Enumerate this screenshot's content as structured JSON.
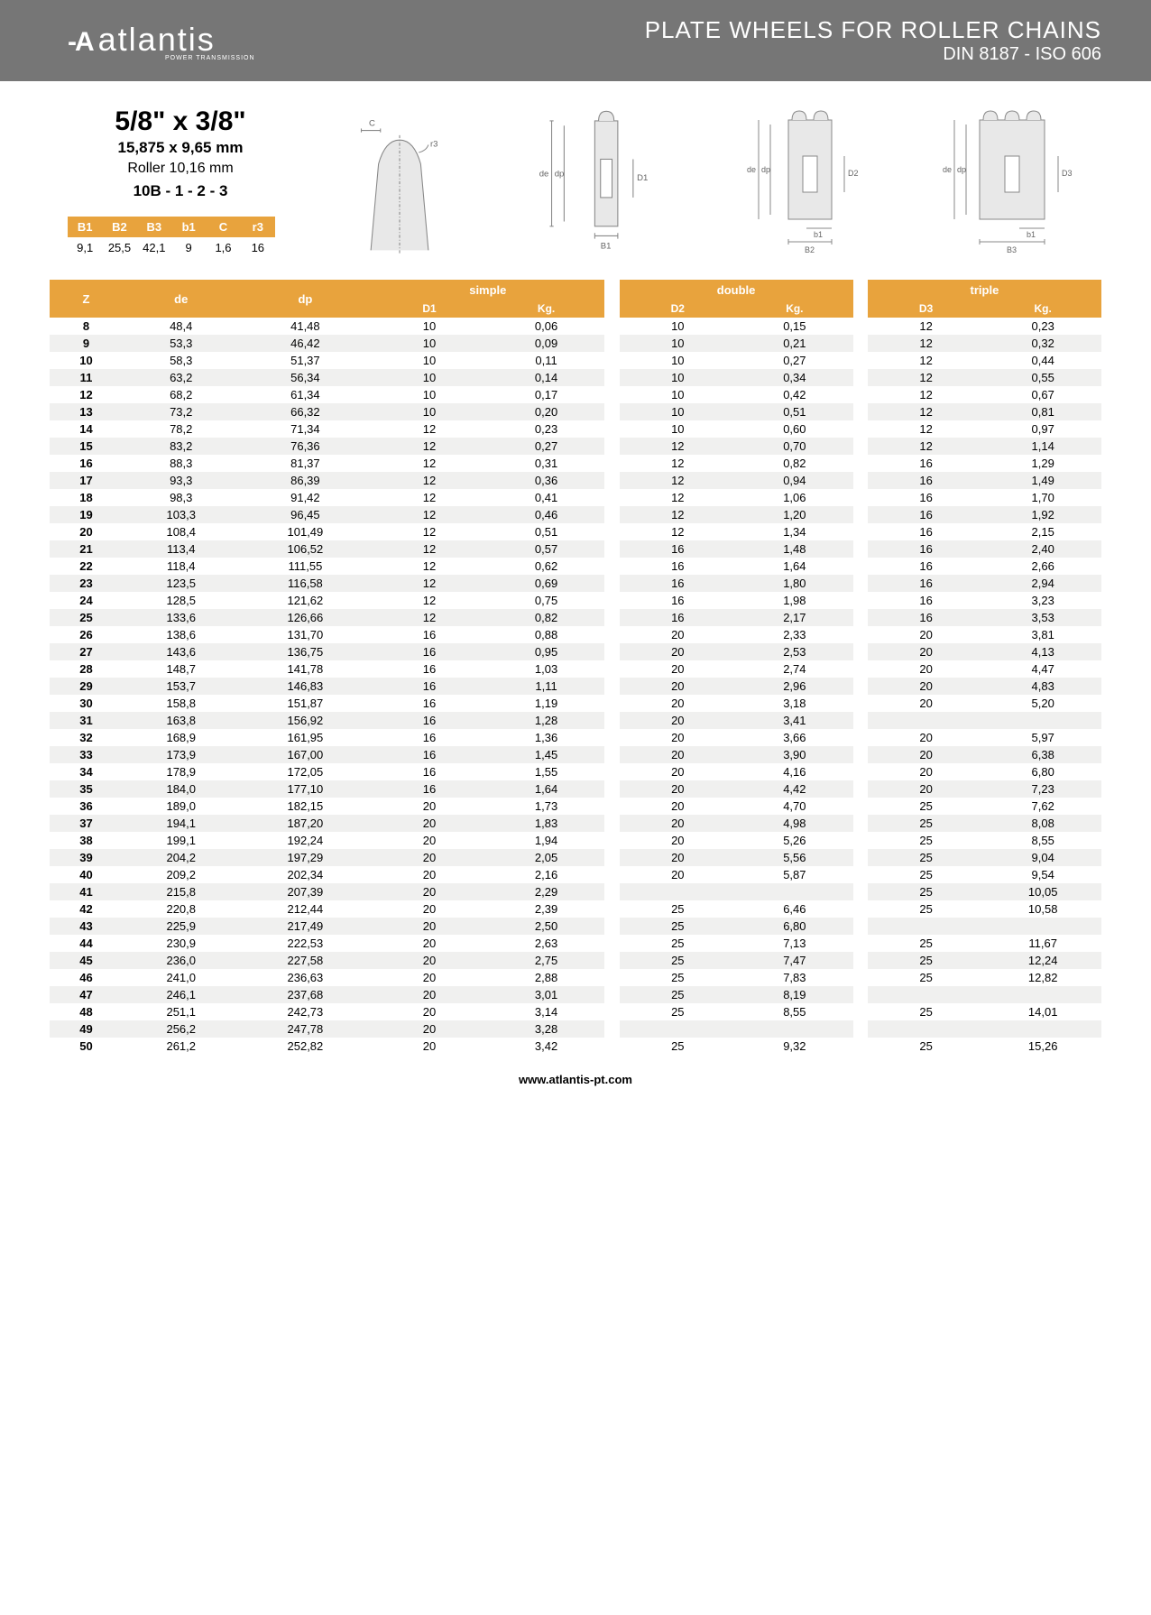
{
  "header": {
    "logo_text": "atlantis",
    "logo_sub": "POWER TRANSMISSION",
    "title": "PLATE WHEELS FOR ROLLER CHAINS",
    "subtitle": "DIN 8187 - ISO 606"
  },
  "spec": {
    "main": "5/8\" x 3/8\"",
    "sub1": "15,875 x 9,65 mm",
    "sub2": "Roller 10,16 mm",
    "sub3": "10B - 1 - 2 - 3"
  },
  "mini_table": {
    "headers": [
      "B1",
      "B2",
      "B3",
      "b1",
      "C",
      "r3"
    ],
    "values": [
      "9,1",
      "25,5",
      "42,1",
      "9",
      "1,6",
      "16"
    ]
  },
  "table": {
    "group_headers": [
      "simple",
      "double",
      "triple"
    ],
    "sub_headers": {
      "z": "Z",
      "de": "de",
      "dp": "dp",
      "d1": "D1",
      "kg1": "Kg.",
      "d2": "D2",
      "kg2": "Kg.",
      "d3": "D3",
      "kg3": "Kg."
    },
    "rows": [
      [
        "8",
        "48,4",
        "41,48",
        "10",
        "0,06",
        "10",
        "0,15",
        "12",
        "0,23"
      ],
      [
        "9",
        "53,3",
        "46,42",
        "10",
        "0,09",
        "10",
        "0,21",
        "12",
        "0,32"
      ],
      [
        "10",
        "58,3",
        "51,37",
        "10",
        "0,11",
        "10",
        "0,27",
        "12",
        "0,44"
      ],
      [
        "11",
        "63,2",
        "56,34",
        "10",
        "0,14",
        "10",
        "0,34",
        "12",
        "0,55"
      ],
      [
        "12",
        "68,2",
        "61,34",
        "10",
        "0,17",
        "10",
        "0,42",
        "12",
        "0,67"
      ],
      [
        "13",
        "73,2",
        "66,32",
        "10",
        "0,20",
        "10",
        "0,51",
        "12",
        "0,81"
      ],
      [
        "14",
        "78,2",
        "71,34",
        "12",
        "0,23",
        "10",
        "0,60",
        "12",
        "0,97"
      ],
      [
        "15",
        "83,2",
        "76,36",
        "12",
        "0,27",
        "12",
        "0,70",
        "12",
        "1,14"
      ],
      [
        "16",
        "88,3",
        "81,37",
        "12",
        "0,31",
        "12",
        "0,82",
        "16",
        "1,29"
      ],
      [
        "17",
        "93,3",
        "86,39",
        "12",
        "0,36",
        "12",
        "0,94",
        "16",
        "1,49"
      ],
      [
        "18",
        "98,3",
        "91,42",
        "12",
        "0,41",
        "12",
        "1,06",
        "16",
        "1,70"
      ],
      [
        "19",
        "103,3",
        "96,45",
        "12",
        "0,46",
        "12",
        "1,20",
        "16",
        "1,92"
      ],
      [
        "20",
        "108,4",
        "101,49",
        "12",
        "0,51",
        "12",
        "1,34",
        "16",
        "2,15"
      ],
      [
        "21",
        "113,4",
        "106,52",
        "12",
        "0,57",
        "16",
        "1,48",
        "16",
        "2,40"
      ],
      [
        "22",
        "118,4",
        "111,55",
        "12",
        "0,62",
        "16",
        "1,64",
        "16",
        "2,66"
      ],
      [
        "23",
        "123,5",
        "116,58",
        "12",
        "0,69",
        "16",
        "1,80",
        "16",
        "2,94"
      ],
      [
        "24",
        "128,5",
        "121,62",
        "12",
        "0,75",
        "16",
        "1,98",
        "16",
        "3,23"
      ],
      [
        "25",
        "133,6",
        "126,66",
        "12",
        "0,82",
        "16",
        "2,17",
        "16",
        "3,53"
      ],
      [
        "26",
        "138,6",
        "131,70",
        "16",
        "0,88",
        "20",
        "2,33",
        "20",
        "3,81"
      ],
      [
        "27",
        "143,6",
        "136,75",
        "16",
        "0,95",
        "20",
        "2,53",
        "20",
        "4,13"
      ],
      [
        "28",
        "148,7",
        "141,78",
        "16",
        "1,03",
        "20",
        "2,74",
        "20",
        "4,47"
      ],
      [
        "29",
        "153,7",
        "146,83",
        "16",
        "1,11",
        "20",
        "2,96",
        "20",
        "4,83"
      ],
      [
        "30",
        "158,8",
        "151,87",
        "16",
        "1,19",
        "20",
        "3,18",
        "20",
        "5,20"
      ],
      [
        "31",
        "163,8",
        "156,92",
        "16",
        "1,28",
        "20",
        "3,41",
        "",
        ""
      ],
      [
        "32",
        "168,9",
        "161,95",
        "16",
        "1,36",
        "20",
        "3,66",
        "20",
        "5,97"
      ],
      [
        "33",
        "173,9",
        "167,00",
        "16",
        "1,45",
        "20",
        "3,90",
        "20",
        "6,38"
      ],
      [
        "34",
        "178,9",
        "172,05",
        "16",
        "1,55",
        "20",
        "4,16",
        "20",
        "6,80"
      ],
      [
        "35",
        "184,0",
        "177,10",
        "16",
        "1,64",
        "20",
        "4,42",
        "20",
        "7,23"
      ],
      [
        "36",
        "189,0",
        "182,15",
        "20",
        "1,73",
        "20",
        "4,70",
        "25",
        "7,62"
      ],
      [
        "37",
        "194,1",
        "187,20",
        "20",
        "1,83",
        "20",
        "4,98",
        "25",
        "8,08"
      ],
      [
        "38",
        "199,1",
        "192,24",
        "20",
        "1,94",
        "20",
        "5,26",
        "25",
        "8,55"
      ],
      [
        "39",
        "204,2",
        "197,29",
        "20",
        "2,05",
        "20",
        "5,56",
        "25",
        "9,04"
      ],
      [
        "40",
        "209,2",
        "202,34",
        "20",
        "2,16",
        "20",
        "5,87",
        "25",
        "9,54"
      ],
      [
        "41",
        "215,8",
        "207,39",
        "20",
        "2,29",
        "",
        "",
        "25",
        "10,05"
      ],
      [
        "42",
        "220,8",
        "212,44",
        "20",
        "2,39",
        "25",
        "6,46",
        "25",
        "10,58"
      ],
      [
        "43",
        "225,9",
        "217,49",
        "20",
        "2,50",
        "25",
        "6,80",
        "",
        ""
      ],
      [
        "44",
        "230,9",
        "222,53",
        "20",
        "2,63",
        "25",
        "7,13",
        "25",
        "11,67"
      ],
      [
        "45",
        "236,0",
        "227,58",
        "20",
        "2,75",
        "25",
        "7,47",
        "25",
        "12,24"
      ],
      [
        "46",
        "241,0",
        "236,63",
        "20",
        "2,88",
        "25",
        "7,83",
        "25",
        "12,82"
      ],
      [
        "47",
        "246,1",
        "237,68",
        "20",
        "3,01",
        "25",
        "8,19",
        "",
        ""
      ],
      [
        "48",
        "251,1",
        "242,73",
        "20",
        "3,14",
        "25",
        "8,55",
        "25",
        "14,01"
      ],
      [
        "49",
        "256,2",
        "247,78",
        "20",
        "3,28",
        "",
        "",
        "",
        ""
      ],
      [
        "50",
        "261,2",
        "252,82",
        "20",
        "3,42",
        "25",
        "9,32",
        "25",
        "15,26"
      ]
    ]
  },
  "footer": "www.atlantis-pt.com",
  "colors": {
    "accent": "#e8a33d",
    "header_bg": "#767676",
    "row_alt": "#f0f0ef"
  }
}
